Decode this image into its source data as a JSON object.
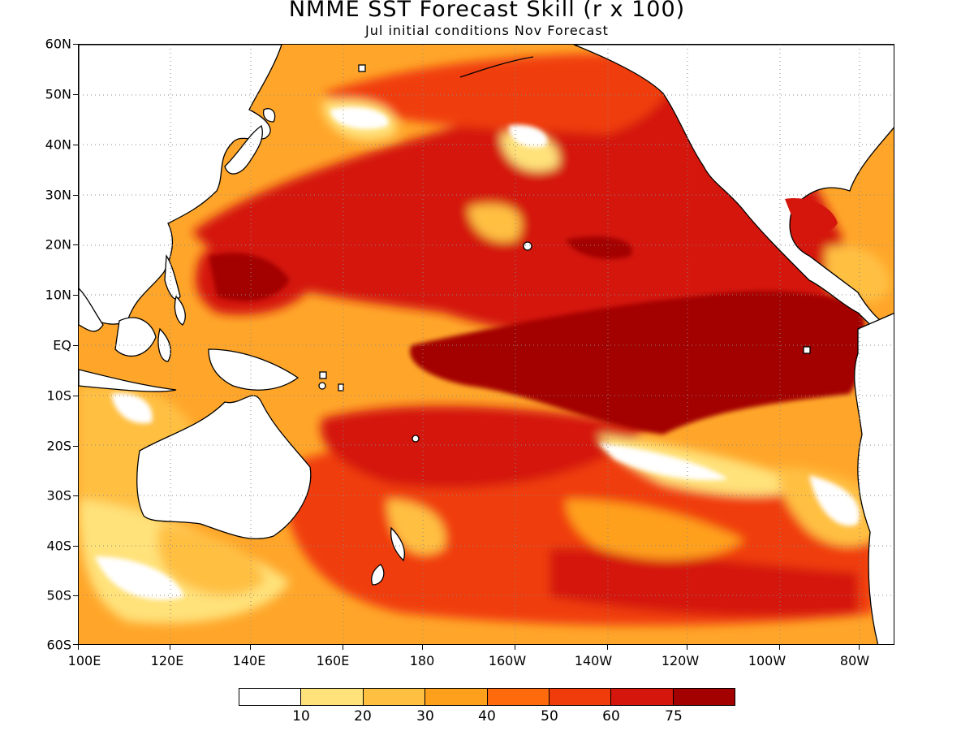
{
  "title": "NMME SST Forecast Skill (r x 100)",
  "subtitle": "Jul initial conditions  Nov Forecast",
  "y_axis": [
    "60N",
    "50N",
    "40N",
    "30N",
    "20N",
    "10N",
    "EQ",
    "10S",
    "20S",
    "30S",
    "40S",
    "50S",
    "60S"
  ],
  "x_axis": [
    "100E",
    "120E",
    "140E",
    "160E",
    "180",
    "160W",
    "140W",
    "120W",
    "100W",
    "80W"
  ],
  "legend": {
    "colors": [
      "#ffffff",
      "#ffe27a",
      "#ffc042",
      "#ffa01c",
      "#ff6a0c",
      "#f03c0a",
      "#d4160c",
      "#a30000"
    ],
    "labels": [
      "10",
      "20",
      "30",
      "40",
      "50",
      "60",
      "75"
    ]
  },
  "colors": {
    "land": "#ffffff",
    "coastline": "#000000",
    "grid": "#888888"
  }
}
